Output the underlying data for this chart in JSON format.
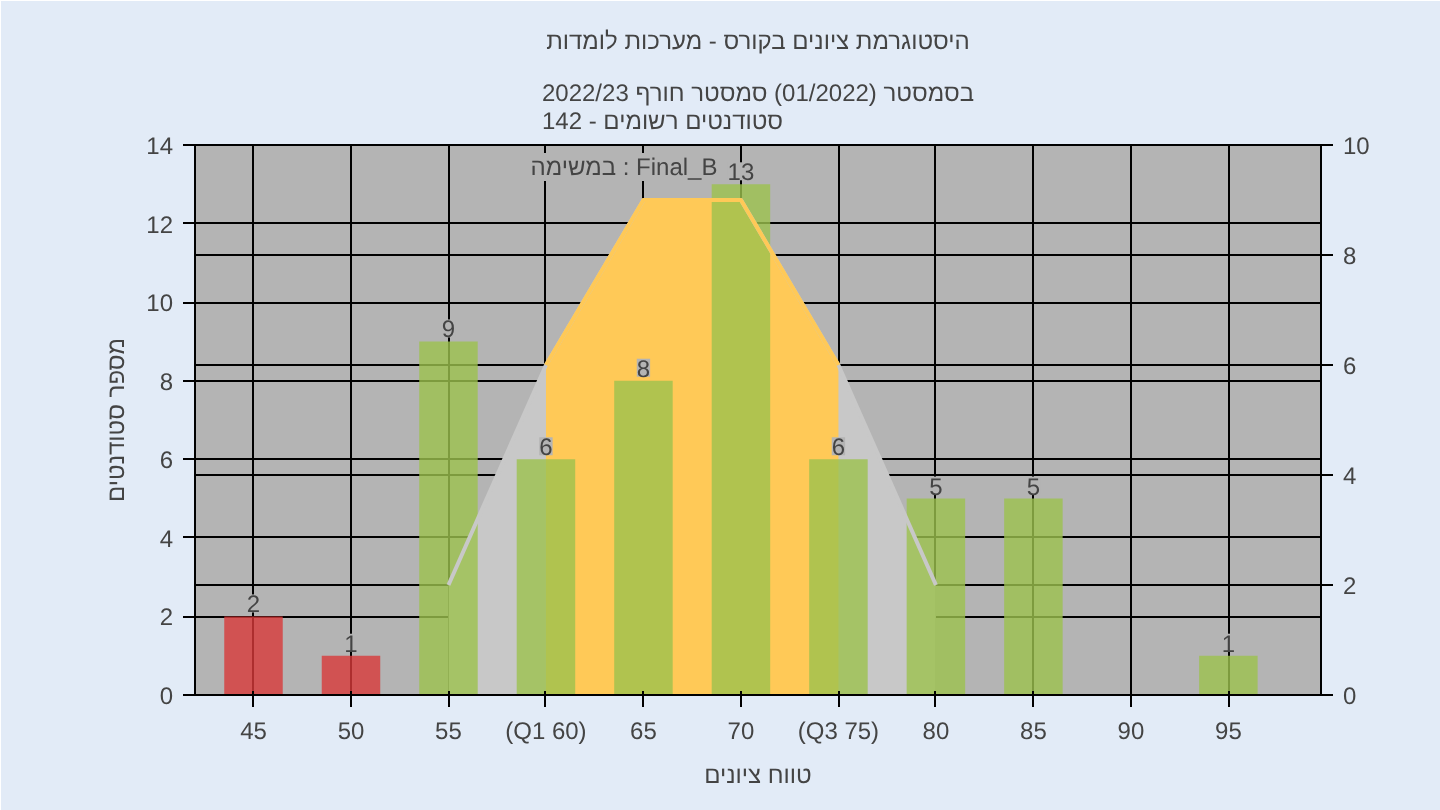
{
  "chart_data": {
    "type": "bar",
    "title": "היסטוגרמת ציונים בקורס - מערכות לומדות",
    "subtitle": "בסמסטר (01/2022) סמסטר חורף 2022/23\nסטודנטים רשומים - 142",
    "xlabel": "טווח ציונים",
    "ylabel": "מספר סטודנטים",
    "annotations": [
      "במשימה : Final_B"
    ],
    "categories": [
      "45",
      "50",
      "55",
      "(Q1 60)",
      "65",
      "70",
      "(Q3 75)",
      "80",
      "85",
      "90",
      "95"
    ],
    "series": [
      {
        "type": "area",
        "axis": "y2",
        "color": "#c8c8c8",
        "values": [
          null,
          null,
          2,
          6,
          9,
          9,
          6,
          2,
          null,
          null,
          null
        ]
      },
      {
        "type": "area",
        "axis": "y2",
        "color": "#ffc957",
        "values": [
          null,
          null,
          null,
          6,
          9,
          9,
          6,
          null,
          null,
          null,
          null
        ]
      },
      {
        "colors": [
          "#d83a3a",
          "#d83a3a",
          "#9cc24e",
          "#9cc24e",
          "#9cc24e",
          "#9cc24e",
          "#9cc24e",
          "#9cc24e",
          "#9cc24e",
          "#9cc24e",
          "#9cc24e"
        ],
        "values": [
          2,
          1,
          9,
          6,
          8,
          13,
          6,
          5,
          5,
          0,
          1
        ],
        "value_labels": [
          "2",
          "1",
          "9",
          "6",
          "8",
          "13",
          "6",
          "5",
          "5",
          null,
          "1"
        ]
      }
    ],
    "ylim": [
      0,
      14
    ],
    "yticks": [
      0,
      2,
      4,
      6,
      8,
      10,
      12,
      14
    ],
    "y2lim": [
      0,
      10
    ],
    "y2ticks": [
      0,
      2,
      4,
      6,
      8,
      10
    ],
    "grid": true
  }
}
